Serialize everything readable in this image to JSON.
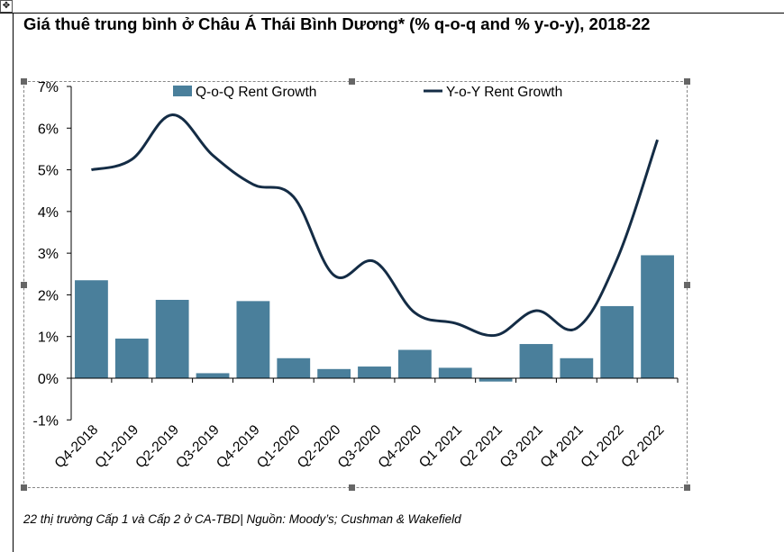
{
  "title": "Giá thuê trung bình ở Châu Á Thái Bình Dương* (% q-o-q and % y-o-y), 2018-22",
  "footnote": "22 thị trường Cấp 1 và Cấp 2 ở CA-TBD| Nguồn: Moody’s; Cushman & Wakefield",
  "colors": {
    "bar": "#4A7F9B",
    "line": "#142C45"
  },
  "chart_data": {
    "type": "bar+line",
    "categories": [
      "Q4-2018",
      "Q1-2019",
      "Q2-2019",
      "Q3-2019",
      "Q4-2019",
      "Q1-2020",
      "Q2-2020",
      "Q3-2020",
      "Q4-2020",
      "Q1 2021",
      "Q2 2021",
      "Q3 2021",
      "Q4 2021",
      "Q1 2022",
      "Q2 2022"
    ],
    "series": [
      {
        "name": "Q-o-Q Rent Growth",
        "type": "bar",
        "values": [
          2.35,
          0.95,
          1.88,
          0.12,
          1.85,
          0.48,
          0.22,
          0.28,
          0.68,
          0.25,
          -0.08,
          0.82,
          0.48,
          1.73,
          2.95
        ]
      },
      {
        "name": "Y-o-Y Rent Growth",
        "type": "line",
        "values": [
          5.0,
          5.25,
          6.32,
          5.35,
          4.65,
          4.35,
          2.47,
          2.8,
          1.57,
          1.32,
          1.03,
          1.62,
          1.2,
          2.85,
          5.72
        ]
      }
    ],
    "yticks": [
      "7%",
      "6%",
      "5%",
      "4%",
      "3%",
      "2%",
      "1%",
      "0%",
      "-1%"
    ],
    "ylim": [
      -1,
      7
    ],
    "legend_position": "top",
    "grid": false
  }
}
